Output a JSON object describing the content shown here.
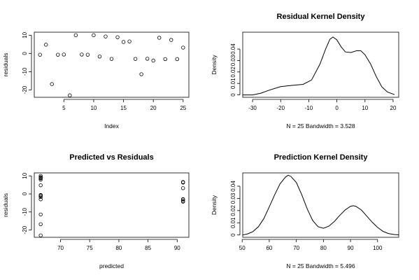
{
  "chart_data": [
    {
      "type": "scatter",
      "title": "",
      "xlabel": "Index",
      "ylabel": "residuals",
      "xlim": [
        0.04,
        25.96
      ],
      "ylim": [
        -24.06,
        11.66
      ],
      "xticks": [
        5,
        10,
        15,
        20,
        25
      ],
      "yticks": [
        -20,
        -10,
        0,
        10
      ],
      "points": [
        [
          1,
          -0.7
        ],
        [
          2,
          4.8
        ],
        [
          3,
          -16.8
        ],
        [
          4,
          -0.7
        ],
        [
          5,
          -0.6
        ],
        [
          6,
          -23.0
        ],
        [
          7,
          10.0
        ],
        [
          8,
          -0.6
        ],
        [
          9,
          -0.7
        ],
        [
          10,
          10.0
        ],
        [
          11,
          -1.7
        ],
        [
          12,
          9.3
        ],
        [
          13,
          -3.0
        ],
        [
          14,
          8.9
        ],
        [
          15,
          6.3
        ],
        [
          16,
          6.6
        ],
        [
          17,
          -3.0
        ],
        [
          18,
          -11.4
        ],
        [
          19,
          -2.9
        ],
        [
          20,
          -3.9
        ],
        [
          21,
          8.6
        ],
        [
          22,
          -3.1
        ],
        [
          23,
          7.4
        ],
        [
          24,
          -3.1
        ],
        [
          25,
          3.2
        ]
      ]
    },
    {
      "type": "line",
      "title": "Residual Kernel Density",
      "xlabel": "N = 25   Bandwidth = 3.528",
      "ylabel": "Density",
      "xlim": [
        -33.5,
        22.0
      ],
      "ylim": [
        -0.0021,
        0.0547
      ],
      "xticks": [
        -30,
        -20,
        -10,
        0,
        10,
        20
      ],
      "yticks": [
        0.0,
        0.01,
        0.02,
        0.03,
        0.04
      ],
      "curve": [
        [
          -33.6,
          0.0
        ],
        [
          -30.0,
          0.0
        ],
        [
          -27.0,
          0.0015
        ],
        [
          -24.0,
          0.0042
        ],
        [
          -20.0,
          0.0072
        ],
        [
          -16.0,
          0.0083
        ],
        [
          -12.0,
          0.0092
        ],
        [
          -9.0,
          0.013
        ],
        [
          -6.0,
          0.027
        ],
        [
          -4.0,
          0.04
        ],
        [
          -2.5,
          0.0485
        ],
        [
          -1.4,
          0.0505
        ],
        [
          0.0,
          0.048
        ],
        [
          1.5,
          0.042
        ],
        [
          3.0,
          0.0375
        ],
        [
          5.0,
          0.037
        ],
        [
          7.0,
          0.0385
        ],
        [
          8.5,
          0.0385
        ],
        [
          10.0,
          0.035
        ],
        [
          12.0,
          0.027
        ],
        [
          14.0,
          0.016
        ],
        [
          16.0,
          0.007
        ],
        [
          18.0,
          0.0025
        ],
        [
          20.5,
          0.0002
        ]
      ]
    },
    {
      "type": "scatter",
      "title": "Predicted vs Residuals",
      "xlabel": "predicted",
      "ylabel": "residuals",
      "xlim": [
        65.5,
        92.0
      ],
      "ylim": [
        -24.06,
        11.66
      ],
      "xticks": [
        70,
        75,
        80,
        85,
        90
      ],
      "yticks": [
        -20,
        -10,
        0,
        10
      ],
      "points": [
        [
          66.6,
          10.0
        ],
        [
          66.6,
          9.3
        ],
        [
          66.6,
          8.9
        ],
        [
          66.6,
          8.6
        ],
        [
          66.6,
          7.9
        ],
        [
          66.6,
          4.8
        ],
        [
          66.6,
          -0.6
        ],
        [
          66.6,
          -0.7
        ],
        [
          66.6,
          -1.0
        ],
        [
          66.6,
          -1.7
        ],
        [
          66.6,
          -3.0
        ],
        [
          66.6,
          -11.4
        ],
        [
          66.6,
          -16.8
        ],
        [
          66.6,
          -23.0
        ],
        [
          91.0,
          6.6
        ],
        [
          91.0,
          6.3
        ],
        [
          91.0,
          3.2
        ],
        [
          91.0,
          -2.9
        ],
        [
          91.0,
          -3.1
        ],
        [
          91.0,
          -3.9
        ],
        [
          91.0,
          -4.3
        ]
      ]
    },
    {
      "type": "line",
      "title": "Prediction Kernel Density",
      "xlabel": "N = 25   Bandwidth = 5.496",
      "ylabel": "Density",
      "xlim": [
        50.2,
        107.8
      ],
      "ylim": [
        -0.0019,
        0.0509
      ],
      "xticks": [
        50,
        60,
        70,
        80,
        90,
        100
      ],
      "yticks": [
        0.0,
        0.01,
        0.02,
        0.03,
        0.04
      ],
      "curve": [
        [
          50.2,
          0.0
        ],
        [
          52.0,
          0.0009
        ],
        [
          54.0,
          0.0028
        ],
        [
          56.0,
          0.0068
        ],
        [
          58.0,
          0.0135
        ],
        [
          60.0,
          0.023
        ],
        [
          62.0,
          0.033
        ],
        [
          64.0,
          0.042
        ],
        [
          66.0,
          0.0475
        ],
        [
          67.0,
          0.049
        ],
        [
          68.0,
          0.048
        ],
        [
          70.0,
          0.043
        ],
        [
          72.0,
          0.033
        ],
        [
          74.0,
          0.0215
        ],
        [
          76.0,
          0.012
        ],
        [
          78.0,
          0.0068
        ],
        [
          80.0,
          0.0055
        ],
        [
          82.0,
          0.0072
        ],
        [
          84.0,
          0.011
        ],
        [
          86.0,
          0.016
        ],
        [
          88.0,
          0.0205
        ],
        [
          90.0,
          0.0235
        ],
        [
          91.0,
          0.024
        ],
        [
          92.0,
          0.0235
        ],
        [
          94.0,
          0.0205
        ],
        [
          96.0,
          0.0155
        ],
        [
          98.0,
          0.0105
        ],
        [
          100.0,
          0.0062
        ],
        [
          102.0,
          0.003
        ],
        [
          104.0,
          0.0012
        ],
        [
          106.0,
          0.0004
        ],
        [
          107.8,
          0.0001
        ]
      ]
    }
  ]
}
